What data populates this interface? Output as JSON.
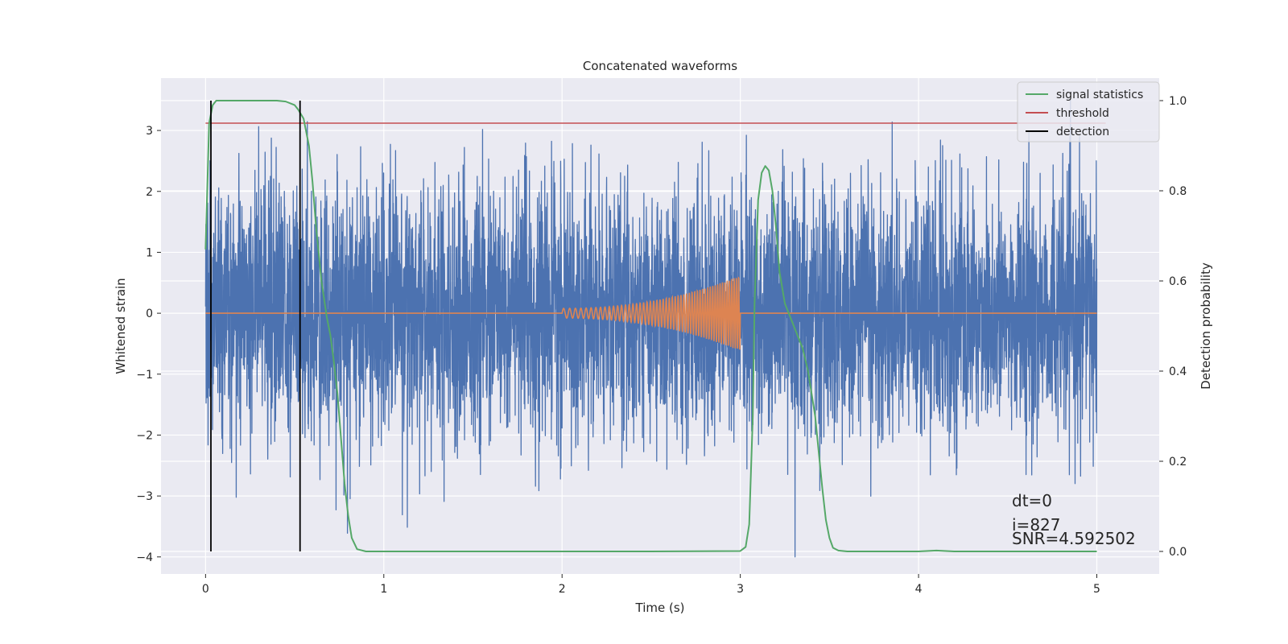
{
  "chart_data": {
    "type": "line",
    "title": "Concatenated waveforms",
    "xlabel": "Time (s)",
    "ylabel": "Whitened strain",
    "y2label": "Detection probability",
    "xlim": [
      -0.25,
      5.35
    ],
    "ylim": [
      -4.28,
      3.86
    ],
    "y2lim": [
      -0.05,
      1.05
    ],
    "xticks": [
      0,
      1,
      2,
      3,
      4,
      5
    ],
    "yticks": [
      -4,
      -3,
      -2,
      -1,
      0,
      1,
      2,
      3
    ],
    "y2ticks": [
      0.0,
      0.2,
      0.4,
      0.6,
      0.8,
      1.0
    ],
    "y2tick_labels": [
      "0.0",
      "0.2",
      "0.4",
      "0.6",
      "0.8",
      "1.0"
    ],
    "grid": true,
    "legend_position": "top-right",
    "colors": {
      "strain": "#4c72b0",
      "template": "#dd8452",
      "signal_statistics": "#55a868",
      "threshold": "#c44e52",
      "detection": "#000000",
      "background": "#eaeaf2",
      "grid": "#ffffff"
    },
    "series": [
      {
        "name": "",
        "kind": "noise",
        "axis": "left",
        "x_range": [
          0,
          5
        ],
        "amplitude": 1.0,
        "max": 3.5,
        "min": -4.0
      },
      {
        "name": "",
        "kind": "chirp",
        "axis": "left",
        "x_range": [
          0,
          5
        ],
        "chirp_start": 2.0,
        "chirp_end": 3.0,
        "amplitude_start": 0.08,
        "amplitude_end": 0.62
      },
      {
        "name": "signal statistics",
        "axis": "right",
        "x": [
          0.0,
          0.02,
          0.04,
          0.06,
          0.08,
          0.1,
          0.2,
          0.3,
          0.4,
          0.45,
          0.5,
          0.52,
          0.55,
          0.58,
          0.6,
          0.62,
          0.65,
          0.68,
          0.7,
          0.72,
          0.74,
          0.76,
          0.78,
          0.8,
          0.82,
          0.85,
          0.9,
          1.0,
          1.5,
          2.0,
          2.5,
          3.0,
          3.03,
          3.05,
          3.07,
          3.08,
          3.1,
          3.12,
          3.14,
          3.16,
          3.18,
          3.2,
          3.22,
          3.25,
          3.3,
          3.35,
          3.38,
          3.4,
          3.42,
          3.44,
          3.46,
          3.48,
          3.5,
          3.52,
          3.55,
          3.6,
          4.0,
          4.1,
          4.2,
          5.0
        ],
        "y": [
          0.67,
          0.95,
          0.99,
          1.0,
          1.0,
          1.0,
          1.0,
          1.0,
          1.0,
          0.998,
          0.99,
          0.98,
          0.96,
          0.9,
          0.82,
          0.72,
          0.6,
          0.52,
          0.48,
          0.42,
          0.35,
          0.25,
          0.15,
          0.08,
          0.03,
          0.005,
          0.0,
          0.0,
          0.0,
          0.0,
          0.0,
          0.001,
          0.01,
          0.06,
          0.3,
          0.55,
          0.78,
          0.84,
          0.855,
          0.845,
          0.8,
          0.72,
          0.62,
          0.55,
          0.5,
          0.45,
          0.4,
          0.35,
          0.3,
          0.22,
          0.14,
          0.07,
          0.03,
          0.008,
          0.002,
          0.0,
          0.0,
          0.002,
          0.0,
          0.0
        ]
      },
      {
        "name": "threshold",
        "axis": "right",
        "x": [
          0,
          5.05
        ],
        "y": [
          0.95,
          0.95
        ]
      },
      {
        "name": "detection",
        "axis": "right",
        "vlines": [
          0.03,
          0.53
        ],
        "y_range": [
          0.0,
          1.0
        ]
      }
    ],
    "legend": [
      "signal statistics",
      "threshold",
      "detection"
    ],
    "annotations": [
      "dt=0",
      "i=827",
      "SNR=4.592502"
    ]
  }
}
